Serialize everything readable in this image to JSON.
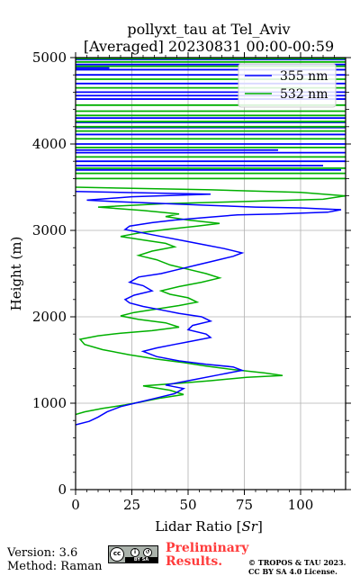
{
  "chart_data": {
    "type": "line",
    "title": "pollyxt_tau at Tel_Aviv",
    "subtitle": "[Averaged] 20230831 00:00-00:59",
    "xlabel": "Lidar Ratio [$Sr$]",
    "xlabel_plain": "Lidar Ratio [",
    "xlabel_unit": "Sr",
    "xlabel_close": "]",
    "ylabel": "Height (m)",
    "xlim": [
      0,
      120
    ],
    "ylim": [
      0,
      5000
    ],
    "x_ticks": [
      0,
      25,
      50,
      75,
      100
    ],
    "y_ticks": [
      0,
      1000,
      2000,
      3000,
      4000,
      5000
    ],
    "grid": true,
    "legend_position": "top-right",
    "series": [
      {
        "name": "355 nm",
        "color": "#0000ff",
        "points": [
          [
            0,
            750
          ],
          [
            6,
            790
          ],
          [
            10,
            840
          ],
          [
            14,
            900
          ],
          [
            20,
            960
          ],
          [
            28,
            1010
          ],
          [
            36,
            1060
          ],
          [
            44,
            1110
          ],
          [
            48,
            1170
          ],
          [
            40,
            1210
          ],
          [
            52,
            1270
          ],
          [
            64,
            1330
          ],
          [
            74,
            1380
          ],
          [
            70,
            1420
          ],
          [
            58,
            1450
          ],
          [
            46,
            1490
          ],
          [
            36,
            1540
          ],
          [
            30,
            1600
          ],
          [
            36,
            1640
          ],
          [
            44,
            1680
          ],
          [
            52,
            1720
          ],
          [
            60,
            1760
          ],
          [
            58,
            1800
          ],
          [
            50,
            1850
          ],
          [
            52,
            1900
          ],
          [
            60,
            1950
          ],
          [
            56,
            2000
          ],
          [
            46,
            2040
          ],
          [
            38,
            2080
          ],
          [
            30,
            2120
          ],
          [
            24,
            2160
          ],
          [
            22,
            2200
          ],
          [
            26,
            2250
          ],
          [
            34,
            2300
          ],
          [
            30,
            2360
          ],
          [
            24,
            2400
          ],
          [
            28,
            2460
          ],
          [
            38,
            2500
          ],
          [
            46,
            2550
          ],
          [
            54,
            2600
          ],
          [
            62,
            2650
          ],
          [
            70,
            2700
          ],
          [
            74,
            2740
          ],
          [
            66,
            2790
          ],
          [
            56,
            2840
          ],
          [
            48,
            2880
          ],
          [
            40,
            2920
          ],
          [
            32,
            2960
          ],
          [
            22,
            3010
          ],
          [
            24,
            3050
          ],
          [
            34,
            3090
          ],
          [
            44,
            3120
          ],
          [
            58,
            3150
          ],
          [
            72,
            3180
          ],
          [
            90,
            3190
          ],
          [
            112,
            3210
          ],
          [
            118,
            3240
          ],
          [
            100,
            3260
          ],
          [
            80,
            3270
          ],
          [
            60,
            3290
          ],
          [
            40,
            3310
          ],
          [
            20,
            3330
          ],
          [
            5,
            3350
          ],
          [
            25,
            3390
          ],
          [
            60,
            3420
          ],
          [
            0,
            3450
          ]
        ],
        "upper_streaks": [
          [
            3700,
            0,
            118
          ],
          [
            3750,
            0,
            110
          ],
          [
            3800,
            0,
            120
          ],
          [
            3900,
            0,
            120
          ],
          [
            3930,
            0,
            90
          ],
          [
            4000,
            0,
            120
          ],
          [
            4110,
            0,
            120
          ],
          [
            4190,
            0,
            120
          ],
          [
            4250,
            0,
            120
          ],
          [
            4300,
            0,
            120
          ],
          [
            4520,
            0,
            120
          ],
          [
            4560,
            0,
            120
          ],
          [
            4600,
            0,
            120
          ],
          [
            4700,
            0,
            120
          ],
          [
            4800,
            0,
            120
          ],
          [
            4860,
            0,
            120
          ],
          [
            4880,
            0,
            15
          ],
          [
            4920,
            0,
            120
          ],
          [
            4980,
            0,
            120
          ]
        ]
      },
      {
        "name": "532 nm",
        "color": "#00b000",
        "points": [
          [
            0,
            870
          ],
          [
            4,
            900
          ],
          [
            12,
            940
          ],
          [
            22,
            980
          ],
          [
            30,
            1020
          ],
          [
            38,
            1060
          ],
          [
            48,
            1100
          ],
          [
            42,
            1150
          ],
          [
            30,
            1200
          ],
          [
            46,
            1230
          ],
          [
            60,
            1260
          ],
          [
            76,
            1300
          ],
          [
            92,
            1320
          ],
          [
            84,
            1350
          ],
          [
            70,
            1390
          ],
          [
            58,
            1430
          ],
          [
            48,
            1470
          ],
          [
            36,
            1510
          ],
          [
            24,
            1560
          ],
          [
            12,
            1620
          ],
          [
            4,
            1680
          ],
          [
            2,
            1740
          ],
          [
            10,
            1780
          ],
          [
            20,
            1810
          ],
          [
            34,
            1840
          ],
          [
            46,
            1880
          ],
          [
            40,
            1930
          ],
          [
            28,
            1970
          ],
          [
            20,
            2010
          ],
          [
            26,
            2050
          ],
          [
            36,
            2090
          ],
          [
            46,
            2130
          ],
          [
            54,
            2170
          ],
          [
            50,
            2220
          ],
          [
            42,
            2260
          ],
          [
            38,
            2300
          ],
          [
            46,
            2350
          ],
          [
            56,
            2400
          ],
          [
            64,
            2450
          ],
          [
            58,
            2500
          ],
          [
            50,
            2550
          ],
          [
            42,
            2600
          ],
          [
            36,
            2660
          ],
          [
            28,
            2710
          ],
          [
            34,
            2760
          ],
          [
            44,
            2810
          ],
          [
            40,
            2850
          ],
          [
            30,
            2890
          ],
          [
            20,
            2930
          ],
          [
            28,
            2970
          ],
          [
            40,
            3010
          ],
          [
            54,
            3050
          ],
          [
            64,
            3080
          ],
          [
            50,
            3120
          ],
          [
            40,
            3160
          ],
          [
            46,
            3190
          ],
          [
            30,
            3230
          ],
          [
            10,
            3270
          ],
          [
            40,
            3310
          ],
          [
            70,
            3330
          ],
          [
            110,
            3360
          ],
          [
            120,
            3400
          ],
          [
            100,
            3440
          ],
          [
            60,
            3470
          ],
          [
            20,
            3490
          ],
          [
            0,
            3500
          ]
        ],
        "upper_streaks": [
          [
            3600,
            0,
            120
          ],
          [
            3660,
            0,
            120
          ],
          [
            3720,
            0,
            120
          ],
          [
            3850,
            0,
            120
          ],
          [
            3960,
            0,
            120
          ],
          [
            4060,
            0,
            120
          ],
          [
            4150,
            0,
            120
          ],
          [
            4200,
            0,
            120
          ],
          [
            4260,
            0,
            120
          ],
          [
            4330,
            0,
            120
          ],
          [
            4380,
            0,
            120
          ],
          [
            4450,
            0,
            120
          ],
          [
            4650,
            0,
            120
          ],
          [
            4750,
            0,
            120
          ],
          [
            4900,
            0,
            120
          ],
          [
            4950,
            0,
            120
          ],
          [
            4990,
            0,
            120
          ]
        ]
      }
    ]
  },
  "footer": {
    "version": "Version: 3.6",
    "method": "Method: Raman",
    "cc_label": "cc",
    "by_sa_label": "BY SA",
    "preliminary_line1": "Preliminary",
    "preliminary_line2": "Results.",
    "copyright_line1": "© TROPOS & TAU 2023.",
    "copyright_line2": "CC BY SA 4.0 License."
  },
  "colors": {
    "series_355": "#0000ff",
    "series_532": "#00b000",
    "preliminary": "#ff3b3b"
  }
}
